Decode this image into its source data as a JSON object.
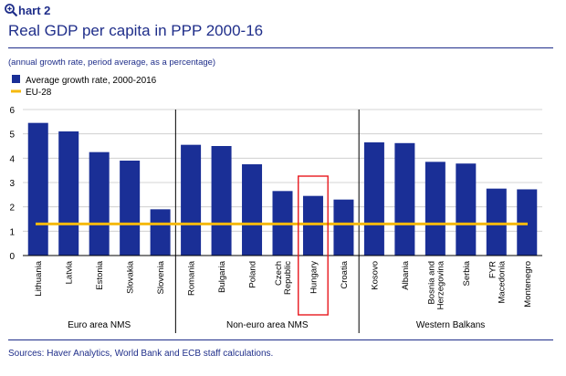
{
  "header": {
    "chart_label": "hart 2",
    "title": "Real GDP per capita in PPP 2000-16",
    "subtitle": "(annual growth rate, period average, as a percentage)"
  },
  "footer": {
    "sources": "Sources: Haver Analytics, World Bank and ECB staff calculations."
  },
  "colors": {
    "bar": "#1a2f96",
    "eu_line": "#f5b90f",
    "highlight": "#e8191e",
    "text_blue": "#1f2e8a"
  },
  "chart_data": {
    "type": "bar",
    "categories": [
      "Lithuania",
      "Latvia",
      "Estonia",
      "Slovakia",
      "Slovenia",
      "Romania",
      "Bulgaria",
      "Poland",
      "Czech Republic",
      "Hungary",
      "Croatia",
      "Kosovo",
      "Albania",
      "Bosnia and Herzegovina",
      "Serbia",
      "FYR Macedonia",
      "Montenegro"
    ],
    "category_lines": [
      [
        "Lithuania"
      ],
      [
        "Latvia"
      ],
      [
        "Estonia"
      ],
      [
        "Slovakia"
      ],
      [
        "Slovenia"
      ],
      [
        "Romania"
      ],
      [
        "Bulgaria"
      ],
      [
        "Poland"
      ],
      [
        "Czech",
        "Republic"
      ],
      [
        "Hungary"
      ],
      [
        "Croatia"
      ],
      [
        "Kosovo"
      ],
      [
        "Albania"
      ],
      [
        "Bosnia and",
        "Herzegovina"
      ],
      [
        "Serbia"
      ],
      [
        "FYR",
        "Macedonia"
      ],
      [
        "Montenegro"
      ]
    ],
    "series": [
      {
        "name": "Average growth rate, 2000-2016",
        "type": "bar",
        "values": [
          5.45,
          5.1,
          4.25,
          3.9,
          1.9,
          4.55,
          4.5,
          3.75,
          2.65,
          2.45,
          2.3,
          4.65,
          4.62,
          3.85,
          3.78,
          2.75,
          2.72
        ]
      },
      {
        "name": "EU-28",
        "type": "line",
        "value": 1.3
      }
    ],
    "groups": [
      {
        "label": "Euro area NMS",
        "start": 0,
        "end": 4
      },
      {
        "label": "Non-euro area NMS",
        "start": 5,
        "end": 10
      },
      {
        "label": "Western Balkans",
        "start": 11,
        "end": 16
      }
    ],
    "highlighted_category": "Hungary",
    "ylim": [
      0,
      6
    ],
    "yticks": [
      0,
      1,
      2,
      3,
      4,
      5,
      6
    ],
    "grid": true,
    "legend_position": "top-left"
  }
}
